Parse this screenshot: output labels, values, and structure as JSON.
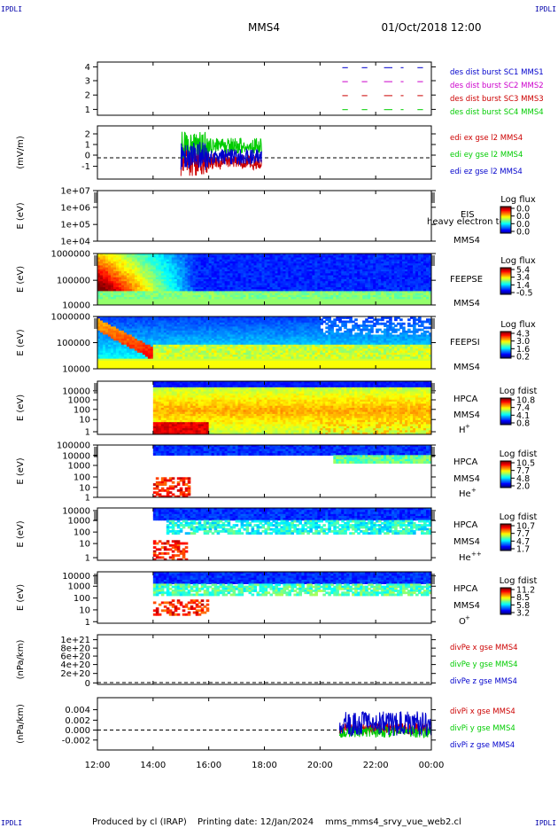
{
  "header": {
    "spacecraft": "MMS4",
    "datetime": "01/Oct/2018 12:00",
    "corner_label": "IPDLI"
  },
  "footer": {
    "produced_by": "Produced by cl (IRAP)",
    "printing_date": "Printing date: 12/Jan/2024",
    "script_name": "mms_mms4_srvy_vue_web2.cl"
  },
  "colors": {
    "red": "#cc0000",
    "green": "#00cc00",
    "blue": "#0000cc",
    "magenta": "#cc00cc",
    "colorbar": [
      "#000080",
      "#0000ff",
      "#0080ff",
      "#00ffff",
      "#80ff80",
      "#ffff00",
      "#ff8000",
      "#ff0000",
      "#800000"
    ]
  },
  "chart_data": {
    "type": "multi-panel time series",
    "x": {
      "ticks": [
        "12:00",
        "14:00",
        "16:00",
        "18:00",
        "20:00",
        "22:00",
        "00:00"
      ],
      "range_hours": [
        12,
        24
      ]
    },
    "panels": [
      {
        "id": "burst",
        "type": "line",
        "yticks": [
          "4",
          "3",
          "2",
          "1"
        ],
        "ylim": [
          0.6,
          4.4
        ],
        "ylabel": "",
        "series": [
          {
            "name": "des dist burst SC1 MMS1",
            "color": "#0000cc",
            "level": 4
          },
          {
            "name": "des dist burst SC2 MMS2",
            "color": "#cc00cc",
            "level": 3
          },
          {
            "name": "des dist burst SC3 MMS3",
            "color": "#cc0000",
            "level": 2
          },
          {
            "name": "des dist burst SC4 MMS4",
            "color": "#00cc00",
            "level": 1
          }
        ]
      },
      {
        "id": "edi",
        "type": "line",
        "ylabel": "(mV/m)",
        "yticks": [
          "2",
          "1",
          "0",
          "-1"
        ],
        "ylim": [
          -1.6,
          2.4
        ],
        "series": [
          {
            "name": "edi ex gse l2 MMS4",
            "color": "#cc0000"
          },
          {
            "name": "edi ey gse l2 MMS4",
            "color": "#00cc00"
          },
          {
            "name": "edi ez gse l2 MMS4",
            "color": "#0000cc"
          }
        ],
        "time_range_hours": [
          15.0,
          17.9
        ]
      },
      {
        "id": "eis",
        "type": "heatmap",
        "ylabel": "E (eV)",
        "yticks": [
          "1e+07",
          "1e+06",
          "1e+05",
          "1e+04"
        ],
        "labels": [
          "EIS",
          "heavy electron to",
          "MMS4"
        ],
        "colorbar": {
          "title": "Log flux",
          "ticks": [
            "0.0",
            "0.0",
            "0.0",
            "0.0"
          ]
        }
      },
      {
        "id": "feepse",
        "type": "heatmap",
        "ylabel": "E (eV)",
        "yticks": [
          "1000000",
          "100000",
          "10000"
        ],
        "labels": [
          "FEEPSE",
          "MMS4"
        ],
        "colorbar": {
          "title": "Log flux",
          "ticks": [
            "5.4",
            "3.4",
            "1.4",
            "-0.5"
          ]
        }
      },
      {
        "id": "feepsi",
        "type": "heatmap",
        "ylabel": "E (eV)",
        "yticks": [
          "1000000",
          "100000",
          "10000"
        ],
        "labels": [
          "FEEPSI",
          "MMS4"
        ],
        "colorbar": {
          "title": "Log flux",
          "ticks": [
            "4.3",
            "3.0",
            "1.6",
            "0.2"
          ]
        }
      },
      {
        "id": "hpca_h",
        "type": "heatmap",
        "ylabel": "E (eV)",
        "yticks": [
          "10000",
          "1000",
          "100",
          "10",
          "1"
        ],
        "labels": [
          "HPCA",
          "MMS4",
          "H",
          "+"
        ],
        "colorbar": {
          "title": "Log fdist",
          "ticks": [
            "10.8",
            "7.4",
            "4.1",
            "0.8"
          ]
        }
      },
      {
        "id": "hpca_he",
        "type": "heatmap",
        "ylabel": "E (eV)",
        "yticks": [
          "100000",
          "10000",
          "1000",
          "100",
          "10",
          "1"
        ],
        "labels": [
          "HPCA",
          "MMS4",
          "He",
          "+"
        ],
        "colorbar": {
          "title": "Log fdist",
          "ticks": [
            "10.5",
            "7.7",
            "4.8",
            "2.0"
          ]
        }
      },
      {
        "id": "hpca_hepp",
        "type": "heatmap",
        "ylabel": "E (eV)",
        "yticks": [
          "10000",
          "1000",
          "100",
          "10",
          "1"
        ],
        "labels": [
          "HPCA",
          "MMS4",
          "He",
          "++"
        ],
        "colorbar": {
          "title": "Log fdist",
          "ticks": [
            "10.7",
            "7.7",
            "4.7",
            "1.7"
          ]
        }
      },
      {
        "id": "hpca_o",
        "type": "heatmap",
        "ylabel": "E (eV)",
        "yticks": [
          "10000",
          "1000",
          "100",
          "10",
          "1"
        ],
        "labels": [
          "HPCA",
          "MMS4",
          "O",
          "+"
        ],
        "colorbar": {
          "title": "Log fdist",
          "ticks": [
            "11.2",
            "8.5",
            "5.8",
            "3.2"
          ]
        }
      },
      {
        "id": "divpe",
        "type": "line",
        "ylabel": "(nPa/km)",
        "yticks": [
          "1e+21",
          "8e+20",
          "6e+20",
          "4e+20",
          "2e+20",
          "0"
        ],
        "ylim": [
          0,
          1.1e+21
        ],
        "series": [
          {
            "name": "divPe x gse MMS4",
            "color": "#cc0000"
          },
          {
            "name": "divPe y gse MMS4",
            "color": "#00cc00"
          },
          {
            "name": "divPe z gse MMS4",
            "color": "#0000cc"
          }
        ]
      },
      {
        "id": "divpi",
        "type": "line",
        "ylabel": "(nPa/km)",
        "yticks": [
          "0.004",
          "0.002",
          "0.000",
          "-0.002"
        ],
        "ylim": [
          -0.0032,
          0.0052
        ],
        "series": [
          {
            "name": "divPi x gse MMS4",
            "color": "#cc0000"
          },
          {
            "name": "divPi y gse MMS4",
            "color": "#00cc00"
          },
          {
            "name": "divPi z gse MMS4",
            "color": "#0000cc"
          }
        ],
        "time_range_hours": [
          20.7,
          24.0
        ]
      }
    ]
  }
}
